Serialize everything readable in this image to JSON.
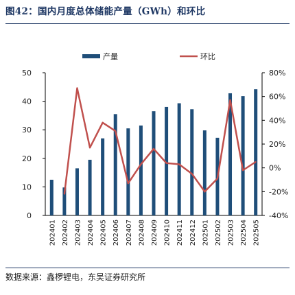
{
  "header": {
    "title": "图42：国内月度总体储能产量（GWh）和环比"
  },
  "footer": {
    "source": "数据来源：鑫椤锂电，东吴证券研究所"
  },
  "colors": {
    "bar": "#1f4e79",
    "line": "#c0504d",
    "axis": "#000000",
    "rule": "#1f3864"
  },
  "chart_data": {
    "type": "bar",
    "categories": [
      "202401",
      "202402",
      "202403",
      "202404",
      "202405",
      "202406",
      "202407",
      "202408",
      "202409",
      "202410",
      "202411",
      "202412",
      "202501",
      "202502",
      "202503",
      "202504",
      "202505"
    ],
    "series": [
      {
        "name": "产量",
        "type": "bar",
        "axis": "left",
        "values": [
          12.5,
          9.8,
          16.5,
          19.5,
          27.0,
          35.5,
          30.5,
          31.5,
          36.5,
          38.0,
          39.3,
          37.2,
          29.8,
          27.2,
          42.8,
          41.8,
          44.2
        ]
      },
      {
        "name": "环比",
        "type": "line",
        "axis": "right",
        "unit": "%",
        "values": [
          null,
          -22,
          67,
          17,
          38,
          31,
          -13,
          3,
          16,
          4,
          3,
          -5,
          -20,
          -9,
          57,
          -2,
          5
        ]
      }
    ],
    "y_left": {
      "ylim": [
        0,
        50
      ],
      "ticks": [
        0,
        10,
        20,
        30,
        40,
        50
      ]
    },
    "y_right": {
      "ylim": [
        -40,
        80
      ],
      "ticks": [
        "-40%",
        "-20%",
        "0%",
        "20%",
        "40%",
        "60%",
        "80%"
      ]
    },
    "legend": {
      "position": "top-center",
      "entries": [
        "产量",
        "环比"
      ]
    },
    "grid": false
  }
}
